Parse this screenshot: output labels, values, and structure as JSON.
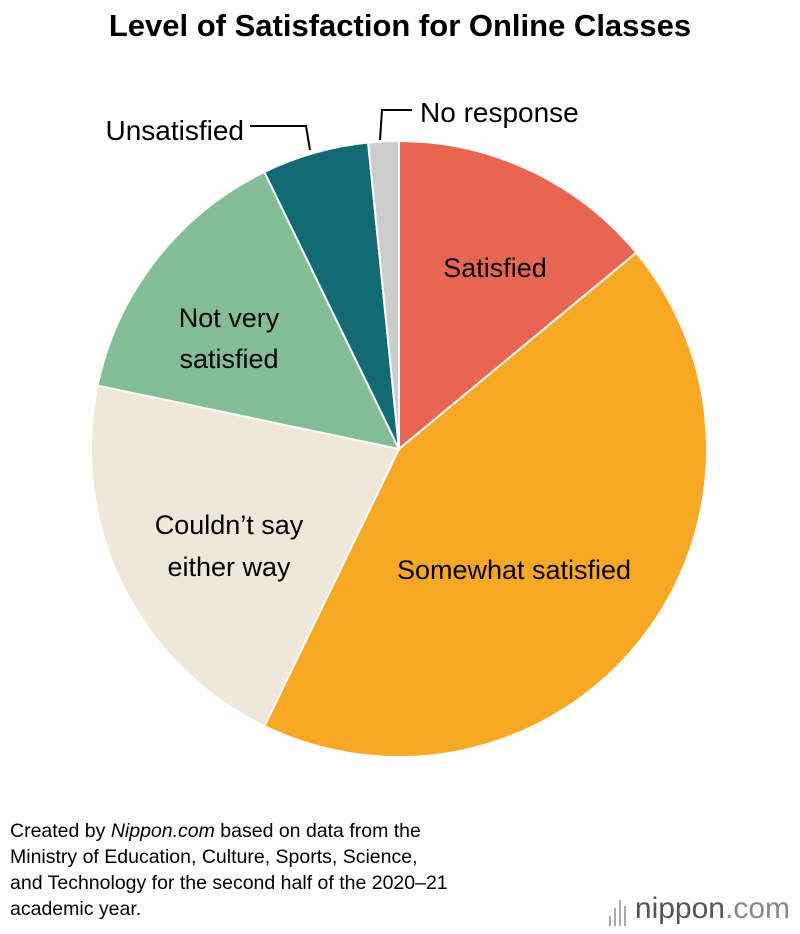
{
  "title": "Level of Satisfaction for Online Classes",
  "chart_data": {
    "type": "pie",
    "title": "Level of Satisfaction for Online Classes",
    "start_angle_deg": 0,
    "direction": "clockwise",
    "slices": [
      {
        "label": "Satisfied",
        "value": 14.0,
        "color": "#e86552"
      },
      {
        "label": "Somewhat satisfied",
        "value": 43.2,
        "color": "#f9a825"
      },
      {
        "label": "Couldn’t say either way",
        "value": 21.1,
        "color": "#efe7d9"
      },
      {
        "label": "Not very satisfied",
        "value": 14.5,
        "color": "#82bd95"
      },
      {
        "label": "Unsatisfied",
        "value": 5.6,
        "color": "#116a74"
      },
      {
        "label": "No response",
        "value": 1.6,
        "color": "#cccccc"
      }
    ]
  },
  "labels": {
    "satisfied": "Satisfied",
    "somewhat_satisfied": "Somewhat satisfied",
    "couldnt_line1": "Couldn’t say",
    "couldnt_line2": "either way",
    "not_very_line1": "Not very",
    "not_very_line2": "satisfied",
    "unsatisfied": "Unsatisfied",
    "no_response": "No response"
  },
  "footer": {
    "prefix": "Created by ",
    "source_name": "Nippon.com",
    "rest_line1": " based on data from the",
    "line2": "Ministry of Education, Culture, Sports, Science,",
    "line3": "and Technology for the second half of the 2020–21",
    "line4": "academic year."
  },
  "logo": {
    "brand": "nippon",
    "tld": ".com"
  }
}
